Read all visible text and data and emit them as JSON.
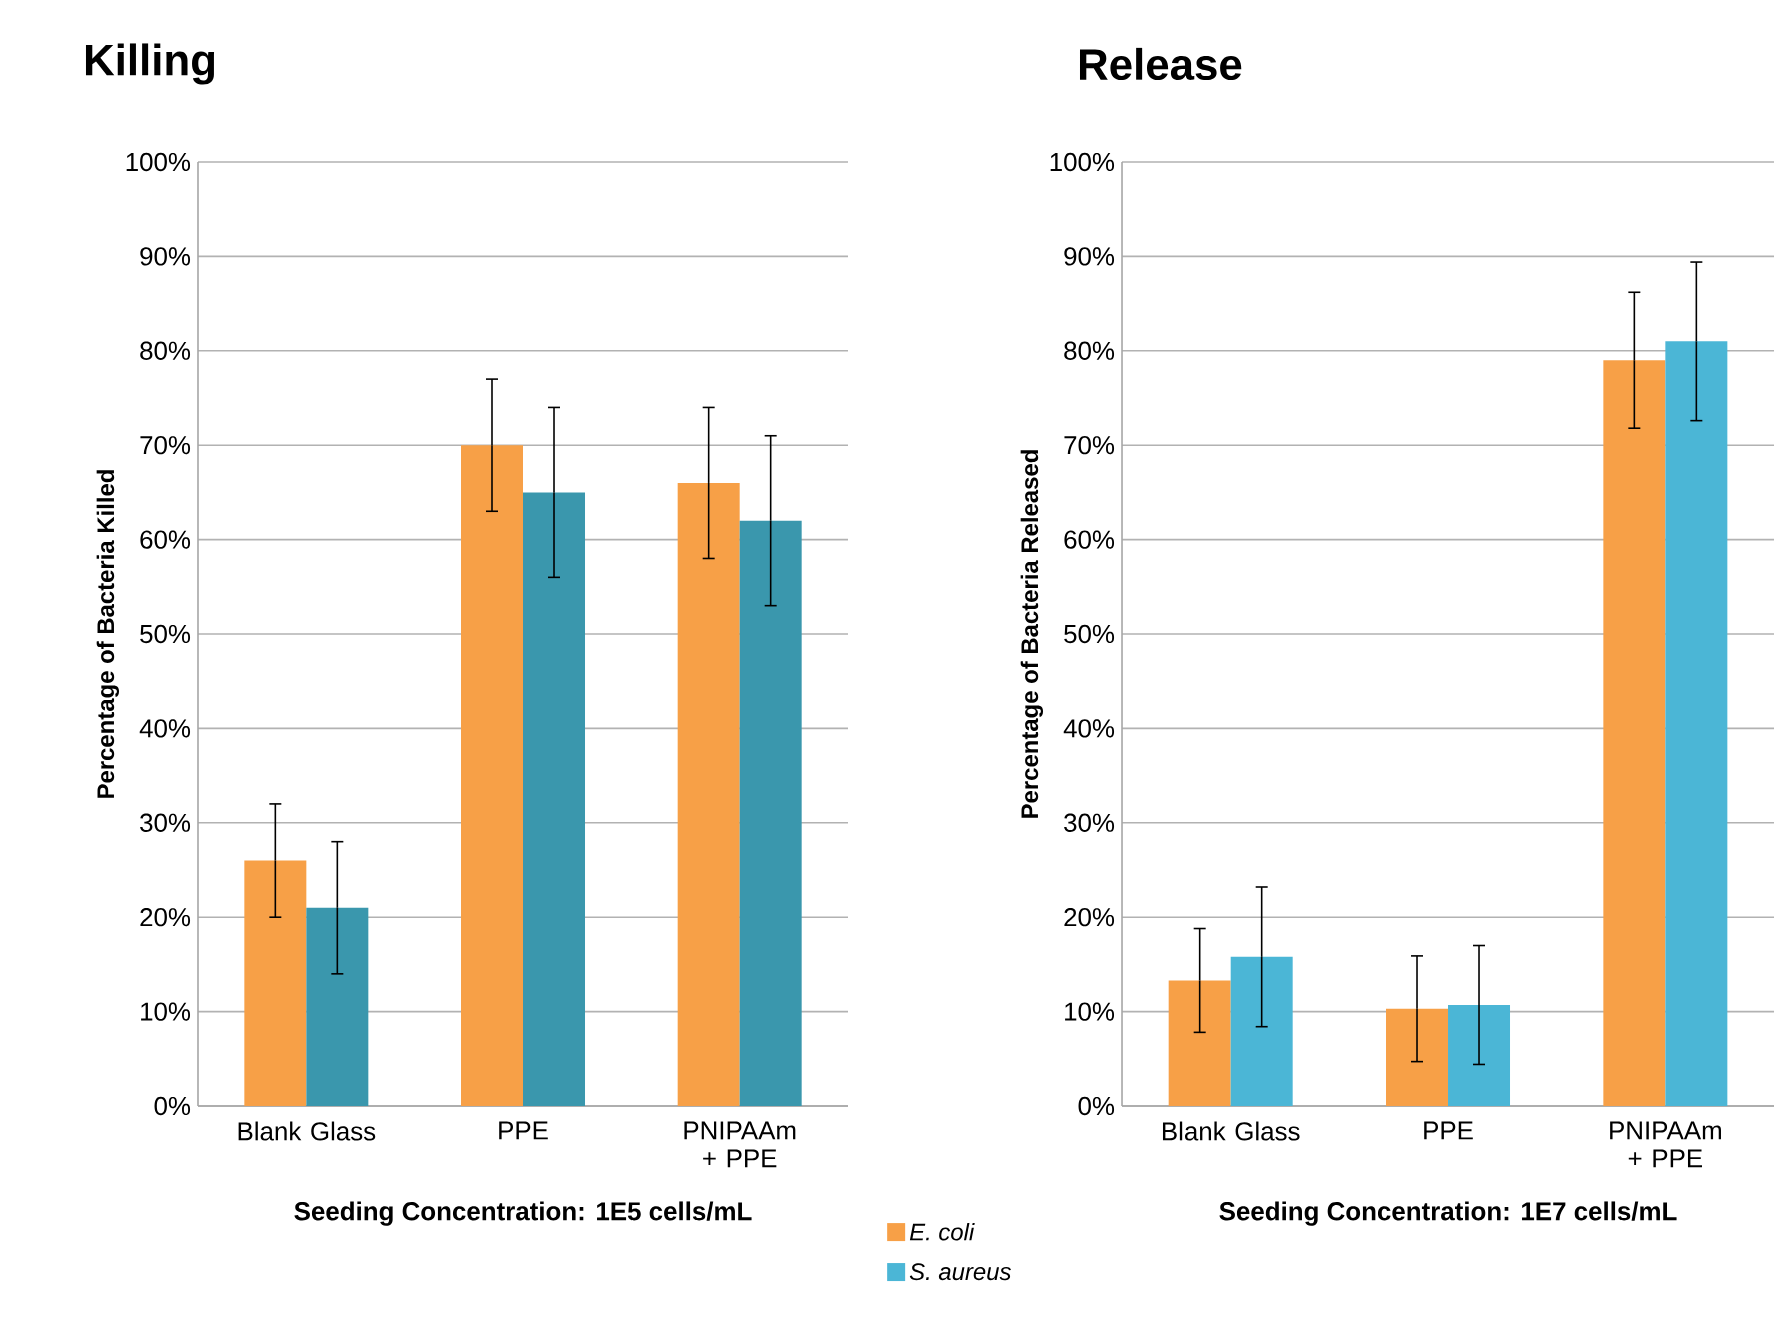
{
  "chart_data": [
    {
      "type": "bar",
      "title": "Killing",
      "ylabel": "Percentage of Bacteria Killed",
      "xlabel": "Seeding Concentration: 1E5 cells/mL",
      "categories": [
        "Blank Glass",
        "PPE",
        "PNIPAAm + PPE"
      ],
      "series": [
        {
          "color": "#f7a047",
          "values": [
            26,
            70,
            66
          ],
          "errors": [
            6,
            7,
            8
          ]
        },
        {
          "color": "#3a97ad",
          "values": [
            21,
            65,
            62
          ],
          "errors": [
            7,
            9,
            9
          ]
        }
      ],
      "ylim": [
        0,
        100
      ],
      "yticks": [
        {
          "value": 0,
          "label": "0%"
        },
        {
          "value": 10,
          "label": "10%"
        },
        {
          "value": 20,
          "label": "20%"
        },
        {
          "value": 30,
          "label": "30%"
        },
        {
          "value": 40,
          "label": "40%"
        },
        {
          "value": 50,
          "label": "50%"
        },
        {
          "value": 60,
          "label": "60%"
        },
        {
          "value": 70,
          "label": "70%"
        },
        {
          "value": 80,
          "label": "80%"
        },
        {
          "value": 90,
          "label": "90%"
        },
        {
          "value": 100,
          "label": "100%"
        }
      ],
      "grid": "y"
    },
    {
      "type": "bar",
      "title": "Release",
      "ylabel": "Percentage of Bacteria Released",
      "xlabel": "Seeding Concentration: 1E7 cells/mL",
      "categories": [
        "Blank Glass",
        "PPE",
        "PNIPAAm + PPE"
      ],
      "series": [
        {
          "name": "E. coli",
          "color": "#f7a047",
          "values": [
            13.3,
            10.3,
            79
          ],
          "errors": [
            5.5,
            5.6,
            7.2
          ]
        },
        {
          "name": "S. aureus",
          "color": "#4bb6d6",
          "values": [
            15.8,
            10.7,
            81
          ],
          "errors": [
            7.4,
            6.3,
            8.4
          ]
        }
      ],
      "ylim": [
        0,
        100
      ],
      "yticks": [
        {
          "value": 0,
          "label": "0%"
        },
        {
          "value": 10,
          "label": "10%"
        },
        {
          "value": 20,
          "label": "20%"
        },
        {
          "value": 30,
          "label": "30%"
        },
        {
          "value": 40,
          "label": "40%"
        },
        {
          "value": 50,
          "label": "50%"
        },
        {
          "value": 60,
          "label": "60%"
        },
        {
          "value": 70,
          "label": "70%"
        },
        {
          "value": 80,
          "label": "80%"
        },
        {
          "value": 90,
          "label": "90%"
        },
        {
          "value": 100,
          "label": "100%"
        }
      ],
      "grid": "y",
      "legend": "bottom left"
    }
  ]
}
